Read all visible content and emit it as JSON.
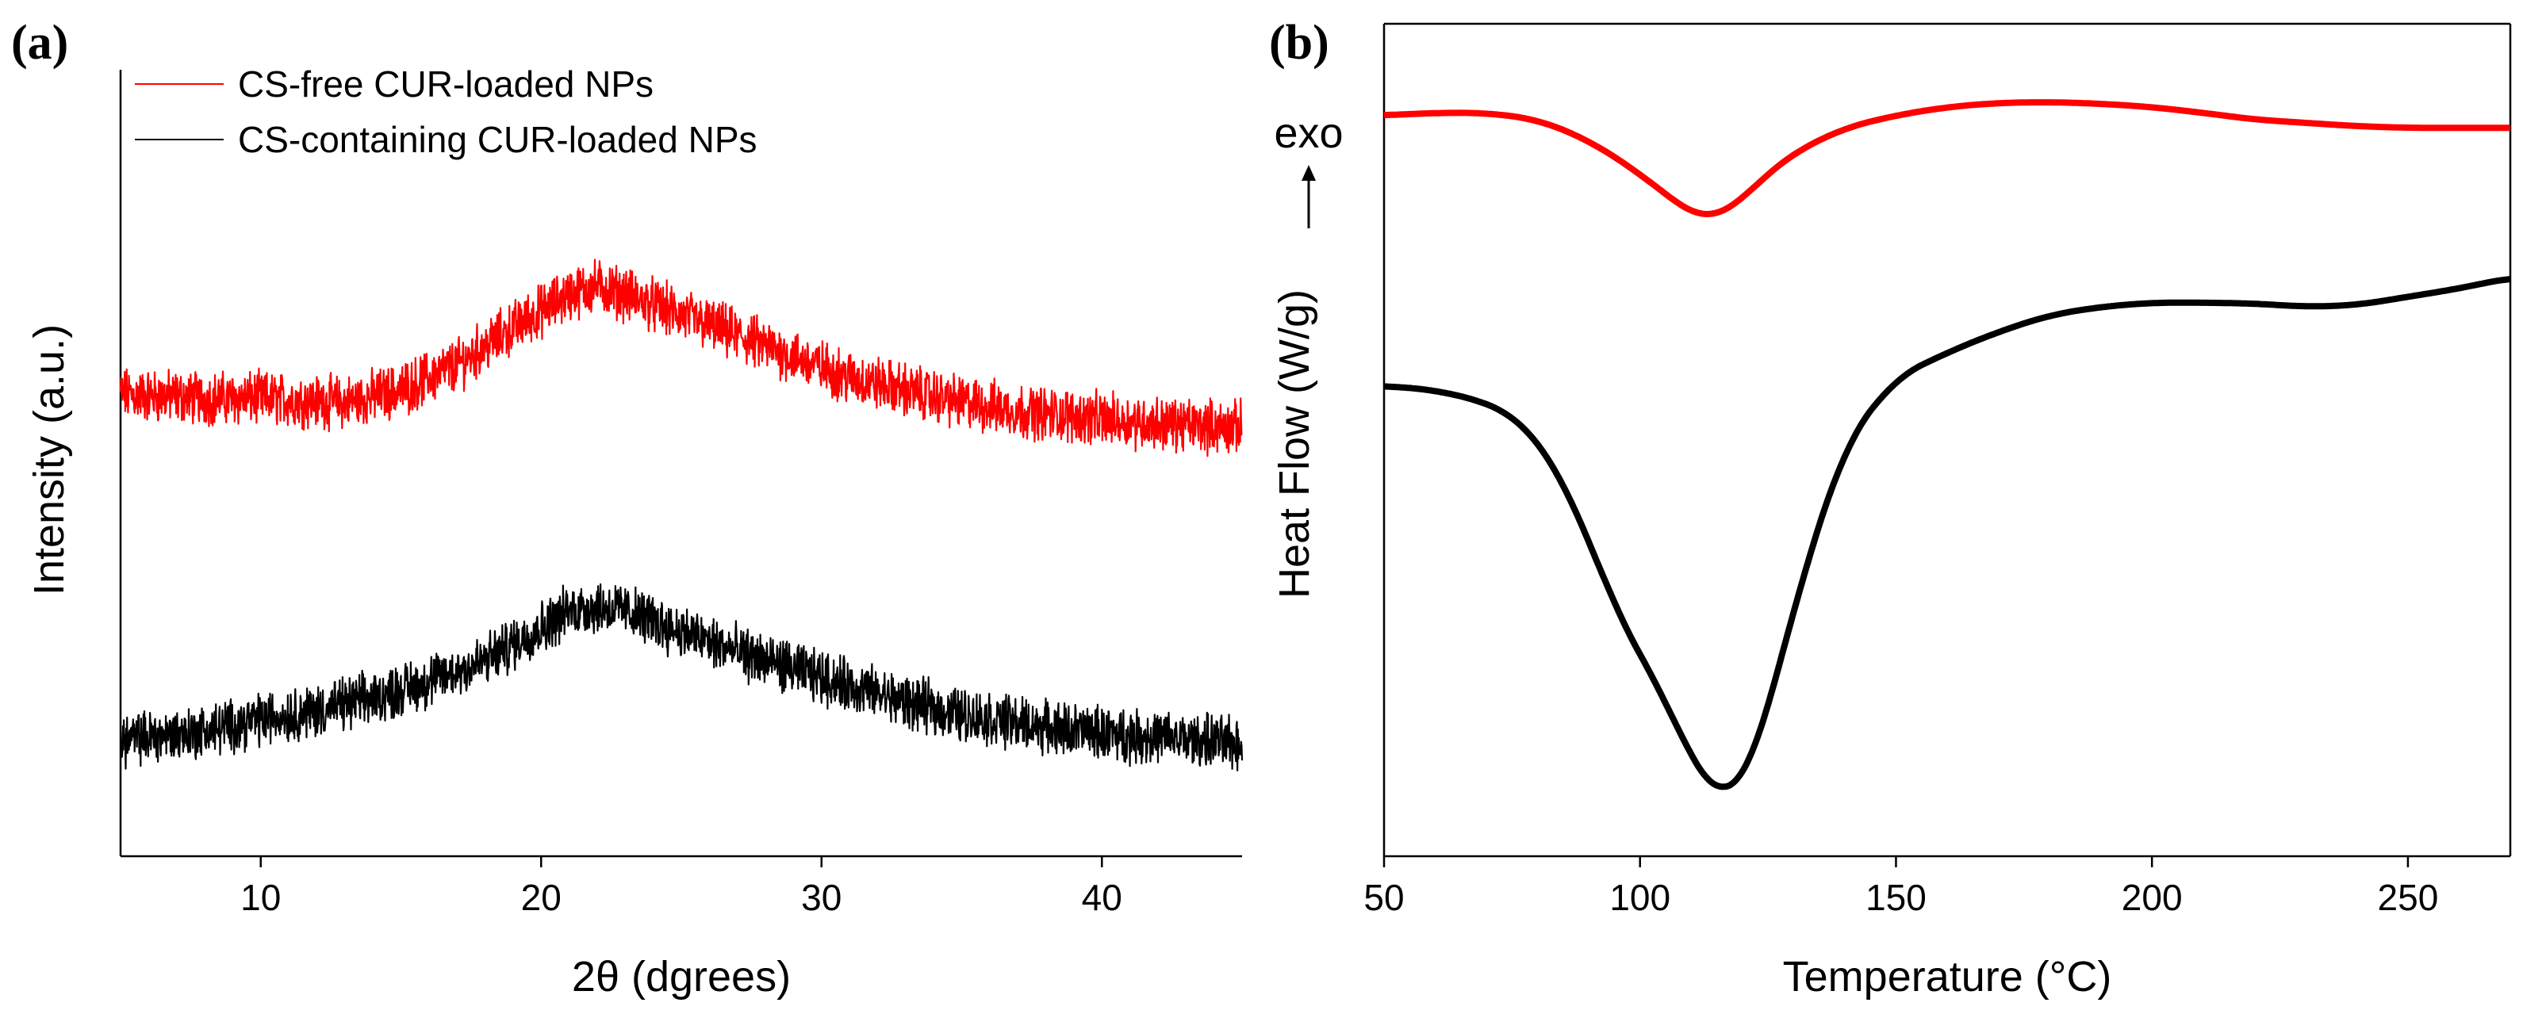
{
  "chart_data": [
    {
      "panel_label": "(a)",
      "type": "line",
      "xlabel": "2θ (dgrees)",
      "ylabel": "Intensity (a.u.)",
      "xlim": [
        5,
        45
      ],
      "xticks": [
        10,
        20,
        30,
        40
      ],
      "xtick_labels": [
        "10",
        "20",
        "30",
        "40"
      ],
      "yticks_shown": false,
      "ylim": [
        0,
        1
      ],
      "legend_location": "top-left",
      "noise_amplitude": 0.025,
      "series": [
        {
          "name": "CS-free CUR-loaded NPs",
          "color": "#ff0000",
          "x": [
            5,
            8,
            10,
            13,
            15,
            17,
            19,
            21,
            22,
            23,
            25,
            27,
            29,
            31,
            33,
            35,
            37,
            40,
            42,
            45
          ],
          "y": [
            0.555,
            0.55,
            0.55,
            0.545,
            0.56,
            0.59,
            0.635,
            0.675,
            0.685,
            0.675,
            0.65,
            0.625,
            0.6,
            0.575,
            0.56,
            0.545,
            0.535,
            0.525,
            0.52,
            0.515
          ]
        },
        {
          "name": "CS-containing CUR-loaded NPs",
          "color": "#000000",
          "x": [
            5,
            8,
            10,
            12,
            14,
            16,
            18,
            20,
            21,
            22,
            23,
            25,
            27,
            29,
            31,
            33,
            35,
            38,
            41,
            45
          ],
          "y": [
            0.14,
            0.15,
            0.165,
            0.175,
            0.19,
            0.21,
            0.235,
            0.275,
            0.295,
            0.3,
            0.295,
            0.27,
            0.245,
            0.225,
            0.205,
            0.185,
            0.17,
            0.155,
            0.145,
            0.135
          ]
        }
      ]
    },
    {
      "panel_label": "(b)",
      "type": "line",
      "xlabel": "Temperature (°C)",
      "ylabel": "Heat Flow (W/g)",
      "direction_annotation": "exo",
      "xlim": [
        50,
        270
      ],
      "xticks": [
        50,
        100,
        150,
        200,
        250
      ],
      "xtick_labels": [
        "50",
        "100",
        "150",
        "200",
        "250"
      ],
      "yticks_shown": false,
      "ylim": [
        0,
        1
      ],
      "series": [
        {
          "name": "CS-free CUR-loaded NPs",
          "color": "#ff0000",
          "x": [
            50,
            60,
            70,
            80,
            90,
            100,
            105,
            110,
            113,
            116,
            120,
            125,
            130,
            140,
            150,
            160,
            170,
            180,
            190,
            200,
            210,
            220,
            240,
            250,
            260,
            270
          ],
          "y": [
            0.89,
            0.893,
            0.893,
            0.885,
            0.86,
            0.82,
            0.795,
            0.772,
            0.765,
            0.77,
            0.79,
            0.82,
            0.845,
            0.875,
            0.89,
            0.9,
            0.905,
            0.906,
            0.904,
            0.9,
            0.893,
            0.885,
            0.877,
            0.875,
            0.875,
            0.875
          ]
        },
        {
          "name": "CS-containing CUR-loaded NPs",
          "color": "#000000",
          "x": [
            50,
            60,
            70,
            75,
            80,
            85,
            90,
            95,
            100,
            105,
            110,
            113,
            116,
            119,
            122,
            125,
            130,
            140,
            150,
            160,
            170,
            180,
            190,
            200,
            210,
            220,
            230,
            240,
            250,
            260,
            270
          ],
          "y": [
            0.565,
            0.56,
            0.545,
            0.53,
            0.5,
            0.45,
            0.38,
            0.3,
            0.24,
            0.19,
            0.115,
            0.085,
            0.07,
            0.08,
            0.11,
            0.175,
            0.3,
            0.495,
            0.575,
            0.605,
            0.63,
            0.65,
            0.66,
            0.665,
            0.665,
            0.664,
            0.66,
            0.662,
            0.672,
            0.682,
            0.695
          ]
        }
      ]
    }
  ]
}
